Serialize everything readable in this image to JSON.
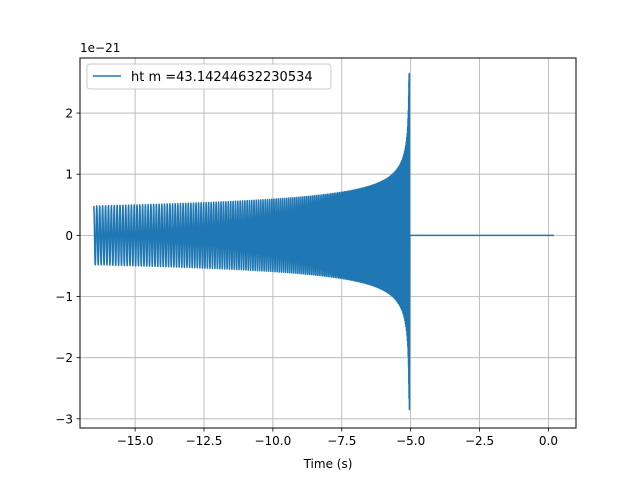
{
  "chart_data": {
    "type": "line",
    "title": "",
    "xlabel": "Time (s)",
    "ylabel": "",
    "y_scale_label": "1e−21",
    "y_scale": 1e-21,
    "xlim": [
      -17.0,
      1.0
    ],
    "ylim": [
      -3.15,
      2.9
    ],
    "grid": true,
    "legend_position": "top-left",
    "x_ticks": [
      -15.0,
      -12.5,
      -10.0,
      -7.5,
      -5.0,
      -2.5,
      0.0
    ],
    "x_tick_labels": [
      "−15.0",
      "−12.5",
      "−10.0",
      "−7.5",
      "−5.0",
      "−2.5",
      "0.0"
    ],
    "y_ticks": [
      -3,
      -2,
      -1,
      0,
      1,
      2
    ],
    "y_tick_labels": [
      "−3",
      "−2",
      "−1",
      "0",
      "1",
      "2"
    ],
    "series": [
      {
        "name": "ht m =43.14244632230534",
        "color": "#1f77b4",
        "x_start": -16.5,
        "merger_time": -5.05,
        "x_end": 0.2,
        "amplitude_start": 0.48,
        "amplitude_max": 2.7
      }
    ]
  }
}
